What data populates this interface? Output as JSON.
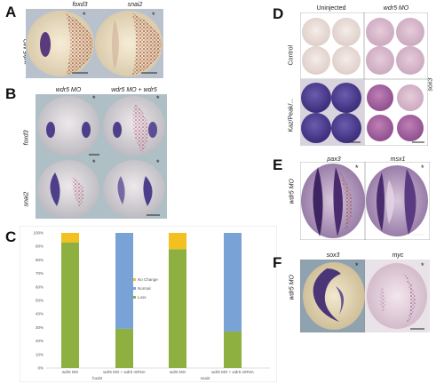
{
  "panels": {
    "A": {
      "letter": "A",
      "col1": "foxd3",
      "col2": "snai2",
      "row": "wdr5 MO",
      "star": "*"
    },
    "B": {
      "letter": "B",
      "col1": "wdr5 MO",
      "col2": "wdr5 MO + wdr5",
      "row1": "foxd3",
      "row2": "snai2",
      "star": "*"
    },
    "C": {
      "letter": "C"
    },
    "D": {
      "letter": "D",
      "col1": "Uninjected",
      "col2": "wdr5 MO",
      "row1": "Control",
      "row2": "Kaz/Peak/...",
      "side": "sox3"
    },
    "E": {
      "letter": "E",
      "col1": "pax3",
      "col2": "msx1",
      "row": "wdr5 MO",
      "star": "*"
    },
    "F": {
      "letter": "F",
      "col1": "sox3",
      "col2": "myc",
      "row": "wdr5 MO",
      "star": "*"
    }
  },
  "chart_data": {
    "type": "bar",
    "stacked": true,
    "categories": [
      "wdr5 MO",
      "wdr5 MO + wdr5 mRNA",
      "wdr5 MO",
      "wdr5 MO + wdr5 mRNA"
    ],
    "groups": [
      "foxd3",
      "snai2"
    ],
    "series": [
      {
        "name": "Loss",
        "color": "#8db040",
        "values": [
          93,
          29,
          88,
          27
        ]
      },
      {
        "name": "Normal",
        "color": "#79a2d6",
        "values": [
          0,
          71,
          0,
          73
        ]
      },
      {
        "name": "No Change",
        "color": "#f3c11f",
        "values": [
          7,
          0,
          12,
          0
        ]
      }
    ],
    "yticks": [
      "0%",
      "10%",
      "20%",
      "30%",
      "40%",
      "50%",
      "60%",
      "70%",
      "80%",
      "90%",
      "100%"
    ],
    "ylim": [
      0,
      100
    ],
    "legend": "middle"
  }
}
